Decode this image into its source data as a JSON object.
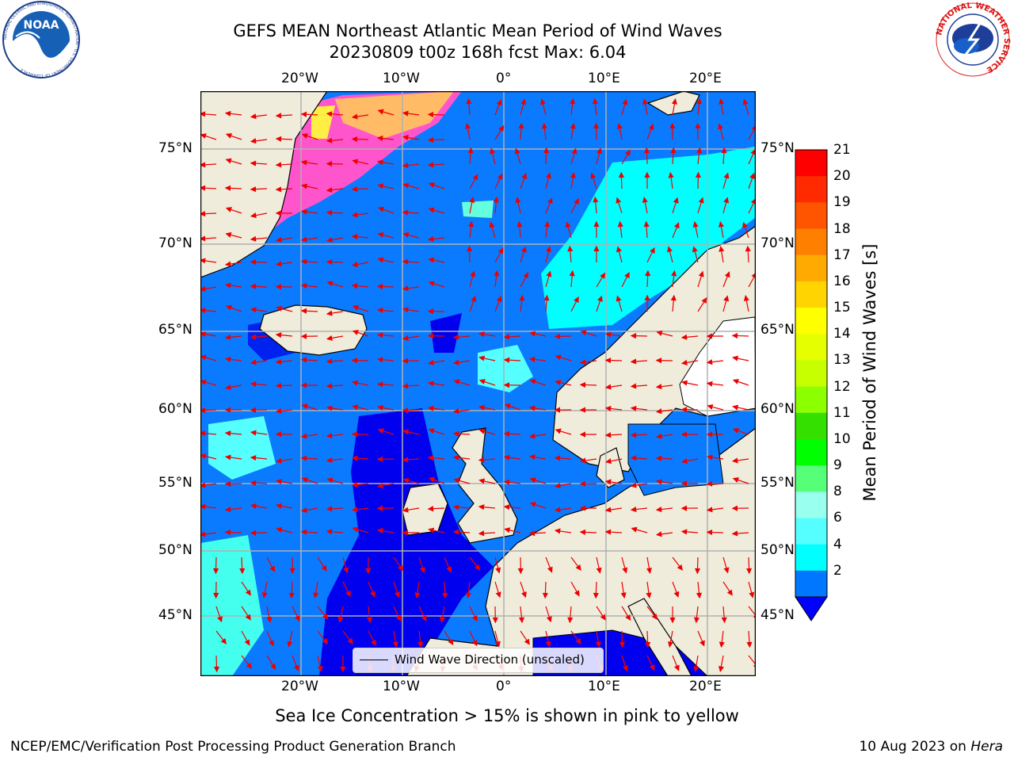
{
  "title": {
    "line1": "GEFS MEAN Northeast Atlantic Mean Period of Wind Waves",
    "line2": "20230809 t00z 168h fcst   Max: 6.04"
  },
  "map": {
    "lon_ticks_top": [
      "20°W",
      "10°W",
      "0°",
      "10°E",
      "20°E"
    ],
    "lon_ticks_bottom": [
      "20°W",
      "10°W",
      "0°",
      "10°E",
      "20°E"
    ],
    "lat_ticks_left": [
      "75°N",
      "70°N",
      "65°N",
      "60°N",
      "55°N",
      "50°N",
      "45°N"
    ],
    "lat_ticks_right": [
      "75°N",
      "70°N",
      "65°N",
      "60°N",
      "55°N",
      "50°N",
      "45°N"
    ],
    "legend_label": "Wind Wave Direction (unscaled)",
    "land_color": "#efecdb",
    "grid": true
  },
  "colorbar": {
    "label": "Mean Period of Wind Waves [s]",
    "ticks": [
      "21",
      "20",
      "19",
      "18",
      "17",
      "16",
      "15",
      "14",
      "13",
      "12",
      "11",
      "10",
      "9",
      "8",
      "6",
      "4",
      "2"
    ],
    "colors": [
      "#ff0000",
      "#ff2a00",
      "#ff5500",
      "#ff7f00",
      "#ffaa00",
      "#ffd400",
      "#ffff00",
      "#e5ff00",
      "#c8ff00",
      "#8cff00",
      "#33e000",
      "#00ff00",
      "#55ff77",
      "#99ffee",
      "#55ffff",
      "#00ffff",
      "#0077ff"
    ],
    "extend_color": "#0000ff"
  },
  "sea_ice_note": "Sea Ice Concentration > 15% is shown in pink to yellow",
  "footer": {
    "credit": "NCEP/EMC/Verification Post Processing Product Generation Branch",
    "date": "10 Aug 2023 on ",
    "machine": "Hera"
  },
  "logos": {
    "left": "NOAA",
    "left_ring": "NATIONAL OCEANIC AND ATMOSPHERIC ADMINISTRATION · U.S. DEPARTMENT OF COMMERCE",
    "right_ring": "NATIONAL WEATHER SERVICE"
  }
}
